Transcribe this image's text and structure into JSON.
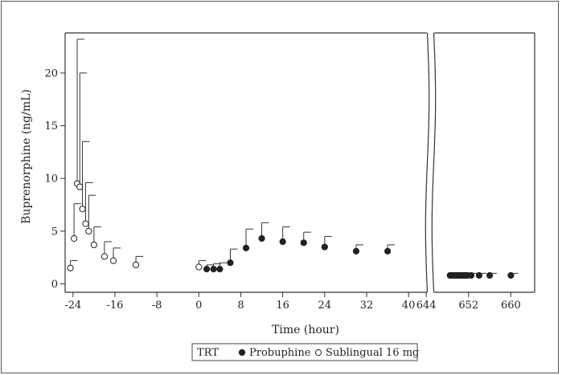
{
  "chart_data": {
    "type": "scatter",
    "xlabel": "Time (hour)",
    "ylabel": "Buprenorphine (ng/mL)",
    "x_ticks_left": [
      -24,
      -16,
      -8,
      0,
      8,
      16,
      24,
      32,
      40
    ],
    "x_ticks_right": [
      644,
      652,
      660
    ],
    "y_ticks": [
      0,
      5,
      10,
      15,
      20
    ],
    "xlim_left": [
      -25.5,
      43.5
    ],
    "xlim_right": [
      645.5,
      664.5
    ],
    "ylim": [
      -0.8,
      23.8
    ],
    "axis_break": true,
    "grid": false,
    "legend_position": "bottom",
    "legend_title": "TRT",
    "series": [
      {
        "name": "Sublingual 16 mg",
        "marker": "open-circle",
        "color": "#222222",
        "points": [
          {
            "x": -24.5,
            "y": 1.5,
            "err": 0.7
          },
          {
            "x": -23.8,
            "y": 4.3,
            "err": 3.3
          },
          {
            "x": -23.2,
            "y": 9.5,
            "err": 13.7
          },
          {
            "x": -22.7,
            "y": 9.2,
            "err": 10.8
          },
          {
            "x": -22.2,
            "y": 7.1,
            "err": 6.4
          },
          {
            "x": -21.6,
            "y": 5.7,
            "err": 3.9
          },
          {
            "x": -21.0,
            "y": 5.0,
            "err": 3.4
          },
          {
            "x": -20.0,
            "y": 3.7,
            "err": 1.7
          },
          {
            "x": -18.0,
            "y": 2.6,
            "err": 1.4
          },
          {
            "x": -16.3,
            "y": 2.2,
            "err": 1.2
          },
          {
            "x": -12.0,
            "y": 1.8,
            "err": 0.8
          },
          {
            "x": 0.0,
            "y": 1.6,
            "err": 0.6
          }
        ]
      },
      {
        "name": "Probuphine",
        "marker": "filled-circle",
        "color": "#222222",
        "points": [
          {
            "x": 1.5,
            "y": 1.4,
            "err": 0.4
          },
          {
            "x": 2.8,
            "y": 1.4,
            "err": 0.5
          },
          {
            "x": 4.0,
            "y": 1.4,
            "err": 0.6
          },
          {
            "x": 6.0,
            "y": 2.0,
            "err": 1.3
          },
          {
            "x": 9.0,
            "y": 3.4,
            "err": 1.8
          },
          {
            "x": 12.0,
            "y": 4.3,
            "err": 1.5
          },
          {
            "x": 16.0,
            "y": 4.0,
            "err": 1.4
          },
          {
            "x": 20.0,
            "y": 3.9,
            "err": 1.0
          },
          {
            "x": 24.0,
            "y": 3.5,
            "err": 1.0
          },
          {
            "x": 30.0,
            "y": 3.1,
            "err": 0.6
          },
          {
            "x": 36.0,
            "y": 3.1,
            "err": 0.6
          },
          {
            "x": 648.5,
            "y": 0.8,
            "err": 0.2
          },
          {
            "x": 648.8,
            "y": 0.8,
            "err": 0.2
          },
          {
            "x": 649.1,
            "y": 0.8,
            "err": 0.2
          },
          {
            "x": 649.4,
            "y": 0.8,
            "err": 0.2
          },
          {
            "x": 649.7,
            "y": 0.8,
            "err": 0.2
          },
          {
            "x": 650.0,
            "y": 0.8,
            "err": 0.2
          },
          {
            "x": 650.3,
            "y": 0.8,
            "err": 0.2
          },
          {
            "x": 650.6,
            "y": 0.8,
            "err": 0.2
          },
          {
            "x": 650.9,
            "y": 0.8,
            "err": 0.2
          },
          {
            "x": 651.2,
            "y": 0.8,
            "err": 0.2
          },
          {
            "x": 651.5,
            "y": 0.8,
            "err": 0.2
          },
          {
            "x": 651.8,
            "y": 0.8,
            "err": 0.2
          },
          {
            "x": 652.5,
            "y": 0.8,
            "err": 0.2
          },
          {
            "x": 654.0,
            "y": 0.8,
            "err": 0.2
          },
          {
            "x": 656.0,
            "y": 0.8,
            "err": 0.2
          },
          {
            "x": 660.0,
            "y": 0.8,
            "err": 0.2
          }
        ]
      }
    ]
  }
}
